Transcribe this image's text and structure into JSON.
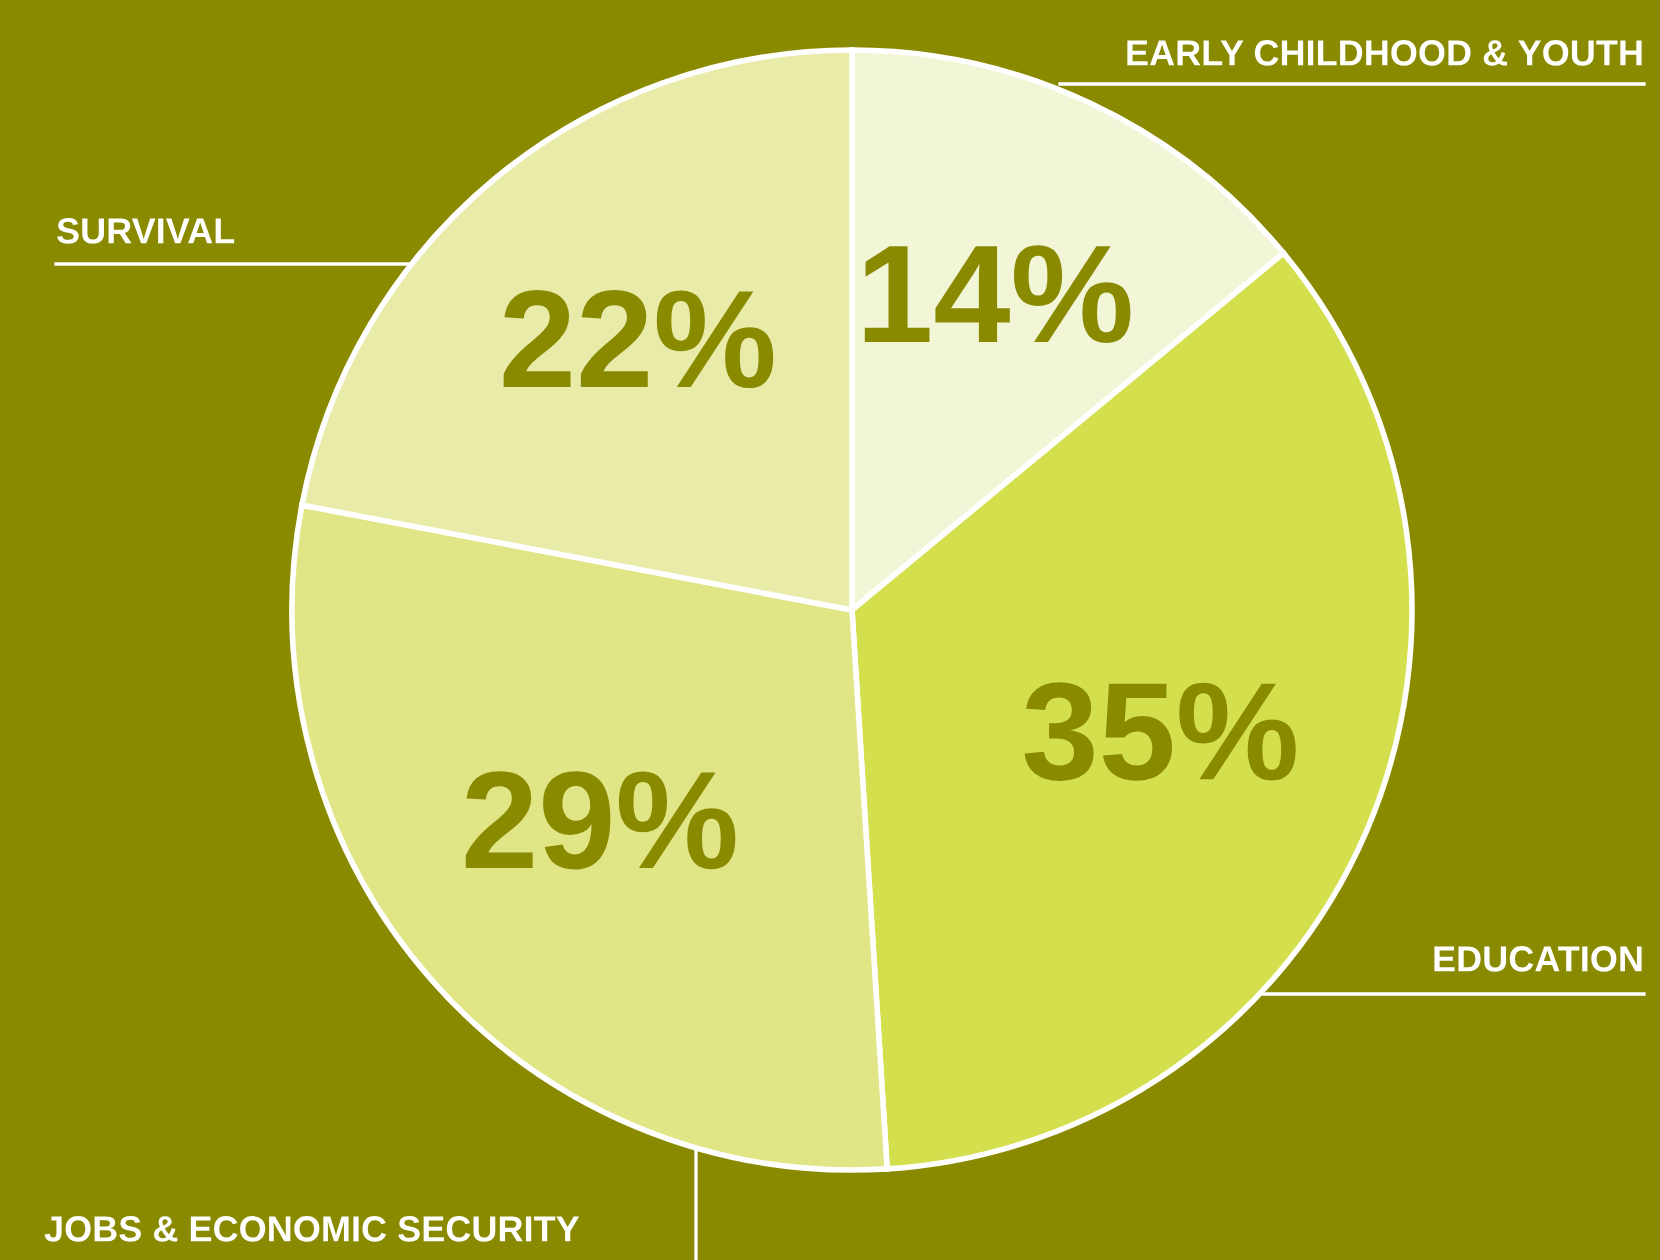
{
  "chart_data": {
    "type": "pie",
    "categories": [
      "EARLY CHILDHOOD & YOUTH",
      "EDUCATION",
      "JOBS & ECONOMIC SECURITY",
      "SURVIVAL"
    ],
    "values": [
      14,
      35,
      29,
      22
    ],
    "colors": [
      "#f2f5d6",
      "#d3df4d",
      "#e0e585",
      "#e8eca8"
    ],
    "value_labels": [
      "14%",
      "35%",
      "29%",
      "22%"
    ]
  }
}
